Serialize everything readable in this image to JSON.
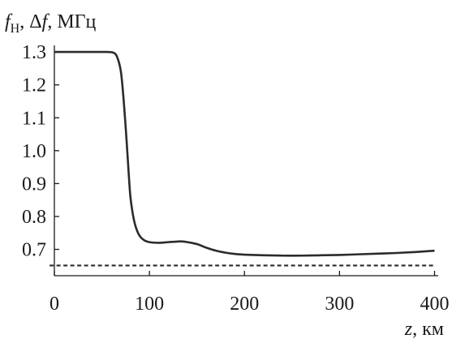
{
  "chart_data": {
    "type": "line",
    "title": "",
    "ylabel": {
      "f_symbol": "f",
      "f_subscript": "H",
      "sep1": ", ",
      "delta": "Δ",
      "delta_f": "f",
      "units": ", МГц"
    },
    "xlabel": {
      "symbol": "z",
      "units": ", км"
    },
    "xlim": [
      0,
      400
    ],
    "ylim": [
      0.62,
      1.32
    ],
    "x_ticks": [
      {
        "value": 0,
        "label": "0"
      },
      {
        "value": 100,
        "label": "100"
      },
      {
        "value": 200,
        "label": "200"
      },
      {
        "value": 300,
        "label": "300"
      },
      {
        "value": 400,
        "label": "400"
      }
    ],
    "y_ticks": [
      {
        "value": 1.3,
        "label": "1.3"
      },
      {
        "value": 1.2,
        "label": "1.2"
      },
      {
        "value": 1.1,
        "label": "1.1"
      },
      {
        "value": 1.0,
        "label": "1.0"
      },
      {
        "value": 0.9,
        "label": "0.9"
      },
      {
        "value": 0.8,
        "label": "0.8"
      },
      {
        "value": 0.7,
        "label": "0.7"
      }
    ],
    "grid": false,
    "legend": "none",
    "series": [
      {
        "style": "solid",
        "color": "#2b2b2b",
        "x": [
          0,
          40,
          55,
          62,
          66,
          70,
          73,
          76,
          78,
          80,
          83,
          86,
          90,
          95,
          100,
          110,
          120,
          130,
          135,
          140,
          150,
          160,
          170,
          180,
          190,
          200,
          220,
          240,
          260,
          280,
          300,
          320,
          340,
          360,
          380,
          400
        ],
        "y": [
          1.3,
          1.3,
          1.3,
          1.298,
          1.285,
          1.24,
          1.15,
          1.03,
          0.94,
          0.86,
          0.8,
          0.765,
          0.74,
          0.727,
          0.722,
          0.72,
          0.722,
          0.724,
          0.724,
          0.722,
          0.716,
          0.705,
          0.696,
          0.69,
          0.686,
          0.684,
          0.682,
          0.681,
          0.681,
          0.682,
          0.683,
          0.685,
          0.687,
          0.689,
          0.692,
          0.696
        ]
      },
      {
        "style": "dashed",
        "color": "#2b2b2b",
        "x": [
          -5,
          400
        ],
        "y": [
          0.651,
          0.651
        ]
      }
    ]
  }
}
